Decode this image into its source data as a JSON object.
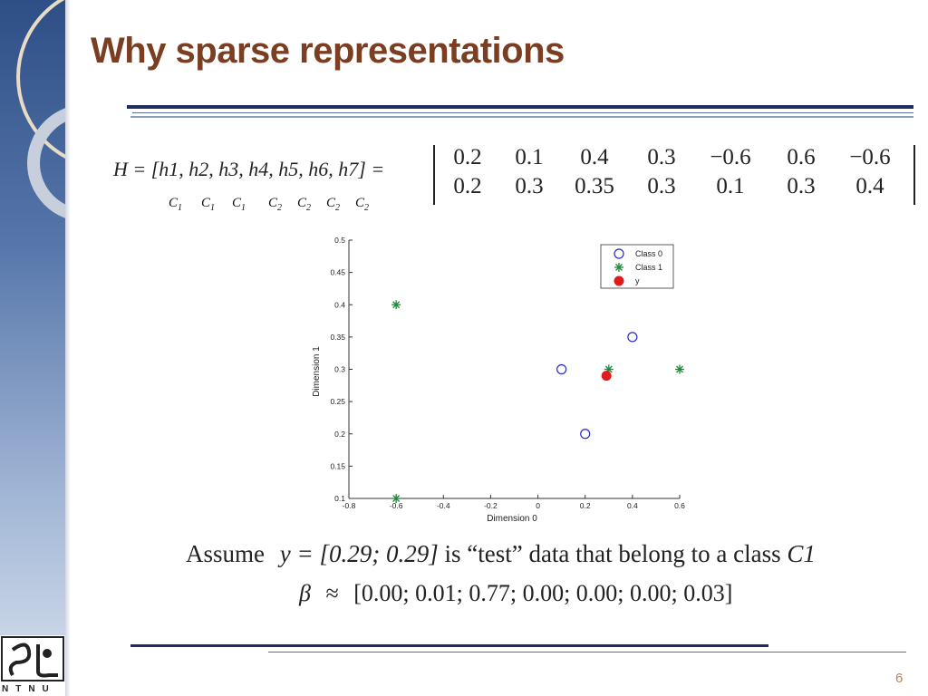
{
  "slide": {
    "title": "Why sparse representations",
    "page_number": "6",
    "logo_text": "NTNU",
    "h_equation": "H = [h1, h2, h3, h4, h5, h6, h7] =",
    "class_labels": [
      "C1",
      "C1",
      "C1",
      "C2",
      "C2",
      "C2",
      "C2"
    ],
    "matrix": [
      [
        "0.2",
        "0.1",
        "0.4",
        "0.3",
        "−0.6",
        "0.6",
        "−0.6"
      ],
      [
        "0.2",
        "0.3",
        "0.35",
        "0.3",
        "0.1",
        "0.3",
        "0.4"
      ]
    ],
    "assume_prefix": "Assume",
    "assume_eq": "y = [0.29; 0.29]",
    "assume_suffix": "is “test” data that belong to a class",
    "assume_class": "C1",
    "beta_symbol": "β",
    "beta_approx": "≈",
    "beta_value": "[0.00; 0.01; 0.77; 0.00; 0.00; 0.00; 0.03]",
    "colors": {
      "title": "#7a3e22",
      "class0": "#2a2ac8",
      "class1": "#1f8a3a",
      "y": "#e01b1b",
      "rule": "#1d2d5c"
    }
  },
  "chart_data": {
    "type": "scatter",
    "title": "",
    "xlabel": "Dimension 0",
    "ylabel": "Dimension 1",
    "xlim": [
      -0.8,
      0.6
    ],
    "ylim": [
      0.1,
      0.5
    ],
    "xticks": [
      "-0.8",
      "-0.6",
      "-0.4",
      "-0.2",
      "0",
      "0.2",
      "0.4",
      "0.6"
    ],
    "yticks": [
      "0.1",
      "0.15",
      "0.2",
      "0.25",
      "0.3",
      "0.35",
      "0.4",
      "0.45",
      "0.5"
    ],
    "legend_position": "top-right",
    "grid": false,
    "series": [
      {
        "name": "Class 0",
        "marker": "circle-open",
        "color": "#2a2ac8",
        "points": [
          [
            0.2,
            0.2
          ],
          [
            0.1,
            0.3
          ],
          [
            0.4,
            0.35
          ]
        ]
      },
      {
        "name": "Class 1",
        "marker": "asterisk",
        "color": "#1f8a3a",
        "points": [
          [
            0.3,
            0.3
          ],
          [
            -0.6,
            0.1
          ],
          [
            0.6,
            0.3
          ],
          [
            -0.6,
            0.4
          ]
        ]
      },
      {
        "name": "y",
        "marker": "circle-filled",
        "color": "#e01b1b",
        "points": [
          [
            0.29,
            0.29
          ]
        ]
      }
    ]
  }
}
